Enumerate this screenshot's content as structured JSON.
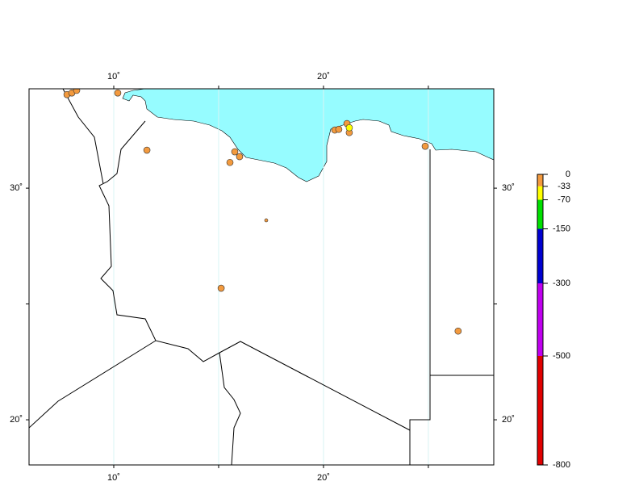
{
  "map": {
    "lon_range": [
      5.96,
      28.12
    ],
    "lat_range": [
      18.05,
      34.29
    ],
    "lon_ticks": [
      {
        "value": 10,
        "label": "10˚"
      },
      {
        "value": 20,
        "label": "20˚"
      }
    ],
    "lat_ticks": [
      {
        "value": 30,
        "label": "30˚"
      },
      {
        "value": 20,
        "label": "20˚"
      }
    ],
    "lon_grid": [
      10,
      15,
      20,
      25
    ],
    "lat_minor": [
      25
    ],
    "events": [
      {
        "lon": 7.77,
        "lat": 34.04,
        "color": "#f39a3e"
      },
      {
        "lon": 8.0,
        "lat": 34.11,
        "color": "#f39a3e"
      },
      {
        "lon": 8.23,
        "lat": 34.22,
        "color": "#f39a3e"
      },
      {
        "lon": 10.19,
        "lat": 34.11,
        "color": "#f39a3e"
      },
      {
        "lon": 11.58,
        "lat": 31.64,
        "color": "#f39a3e"
      },
      {
        "lon": 15.77,
        "lat": 31.57,
        "color": "#f39a3e"
      },
      {
        "lon": 16.0,
        "lat": 31.36,
        "color": "#f39a3e"
      },
      {
        "lon": 15.54,
        "lat": 31.11,
        "color": "#f39a3e"
      },
      {
        "lon": 17.27,
        "lat": 28.61,
        "color": "#f39a3e",
        "size": 2
      },
      {
        "lon": 15.12,
        "lat": 25.68,
        "color": "#f39a3e"
      },
      {
        "lon": 20.54,
        "lat": 32.51,
        "color": "#f39a3e"
      },
      {
        "lon": 20.73,
        "lat": 32.54,
        "color": "#f39a3e"
      },
      {
        "lon": 21.12,
        "lat": 32.79,
        "color": "#f39a3e"
      },
      {
        "lon": 21.23,
        "lat": 32.4,
        "color": "#f39a3e"
      },
      {
        "lon": 21.23,
        "lat": 32.61,
        "color": "#ffff00"
      },
      {
        "lon": 24.85,
        "lat": 31.81,
        "color": "#f39a3e"
      },
      {
        "lon": 26.42,
        "lat": 23.83,
        "color": "#f39a3e"
      }
    ]
  },
  "colorbar": {
    "range": [
      0,
      -800
    ],
    "ticks": [
      0,
      -33,
      -70,
      -150,
      -300,
      -500,
      -800
    ],
    "colors": [
      "#f39a3e",
      "#ffff00",
      "#00e000",
      "#0000d0",
      "#c000f0",
      "#e00000"
    ]
  }
}
